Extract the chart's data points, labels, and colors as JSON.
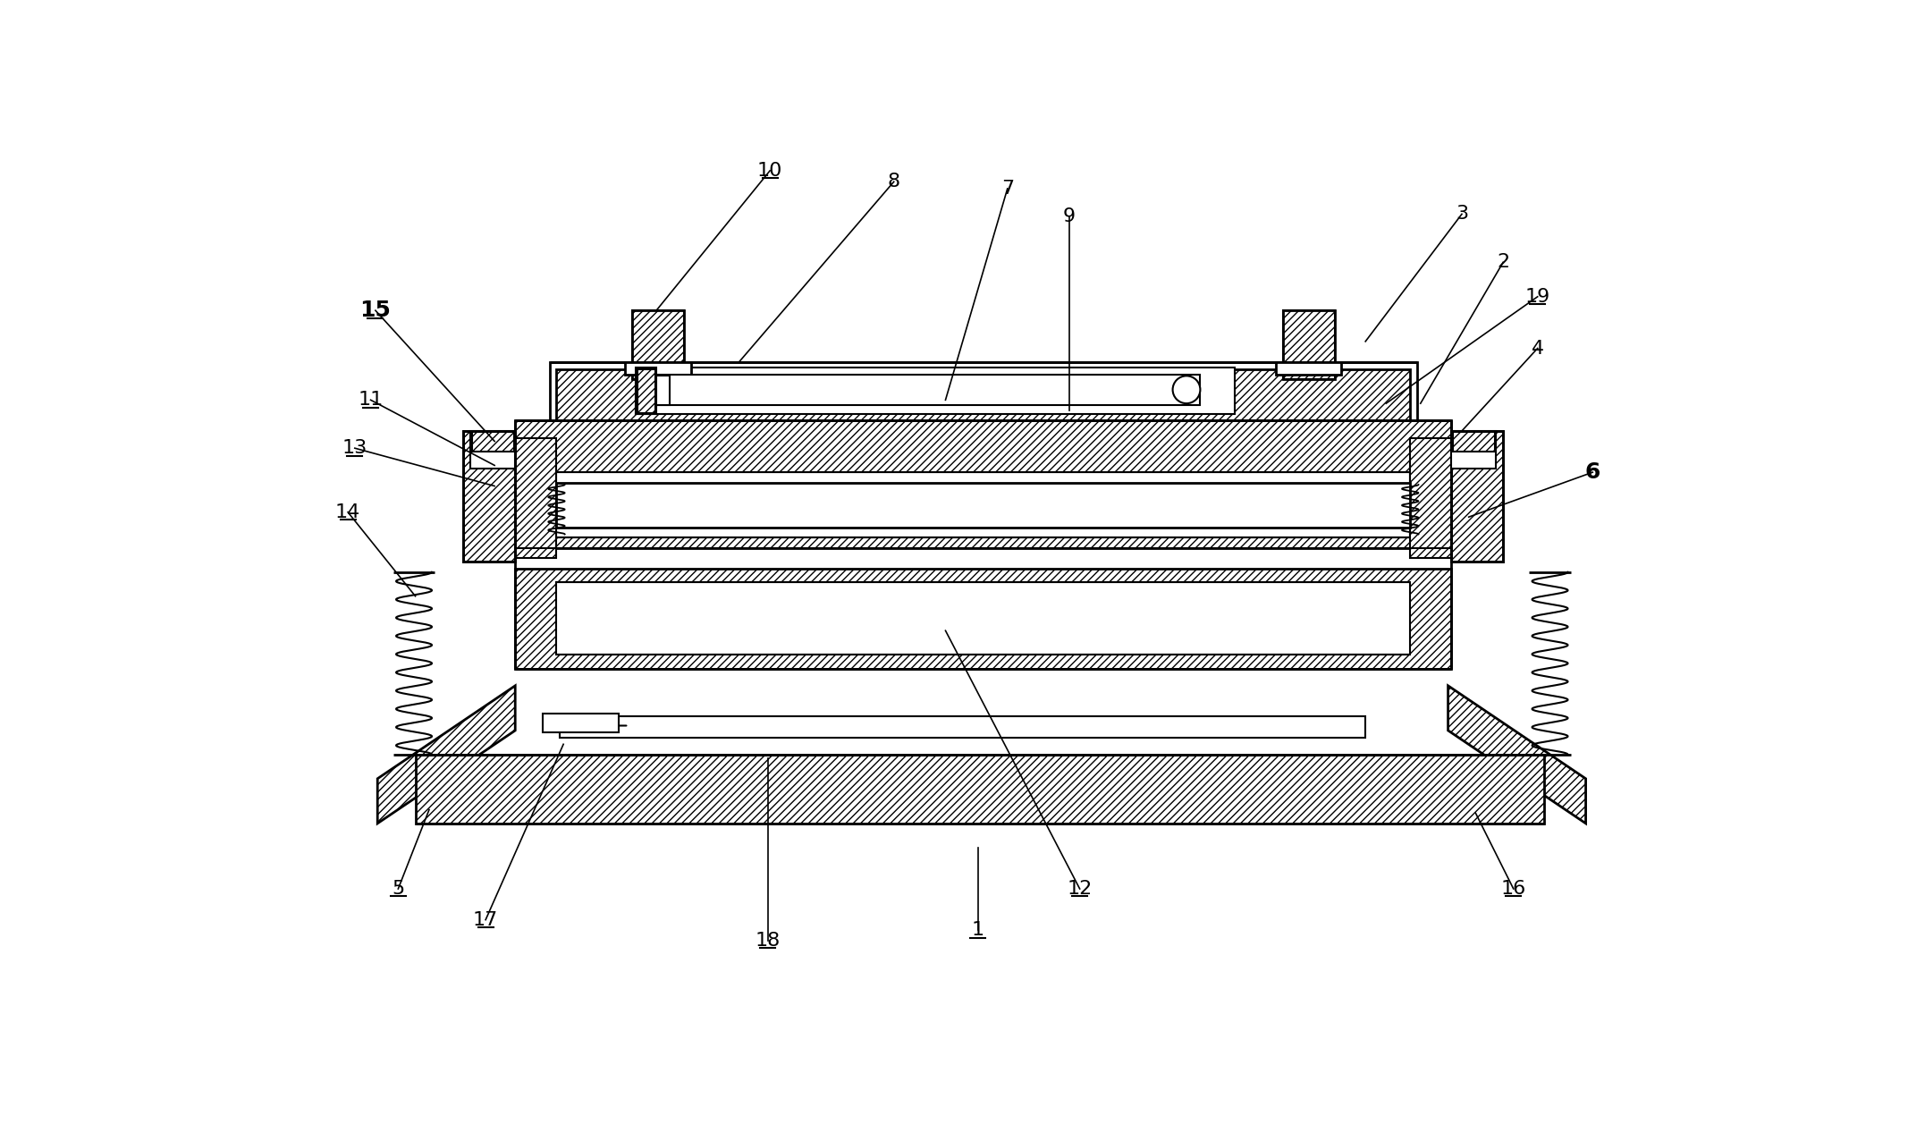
{
  "bg_color": "#ffffff",
  "fig_width": 21.34,
  "fig_height": 12.57,
  "labels_info": [
    [
      "1",
      1067,
      1155,
      1067,
      1035,
      false,
      true
    ],
    [
      "2",
      1830,
      185,
      1710,
      390,
      false,
      false
    ],
    [
      "3",
      1770,
      115,
      1630,
      300,
      false,
      false
    ],
    [
      "4",
      1880,
      310,
      1770,
      430,
      false,
      false
    ],
    [
      "5",
      225,
      1095,
      270,
      980,
      false,
      true
    ],
    [
      "6",
      1960,
      490,
      1780,
      555,
      true,
      false
    ],
    [
      "7",
      1110,
      78,
      1020,
      385,
      false,
      false
    ],
    [
      "8",
      945,
      68,
      720,
      330,
      false,
      false
    ],
    [
      "9",
      1200,
      118,
      1200,
      400,
      false,
      false
    ],
    [
      "10",
      765,
      52,
      600,
      255,
      false,
      true
    ],
    [
      "11",
      185,
      385,
      365,
      480,
      false,
      true
    ],
    [
      "12",
      1215,
      1095,
      1020,
      720,
      false,
      true
    ],
    [
      "13",
      162,
      455,
      365,
      510,
      false,
      true
    ],
    [
      "14",
      152,
      548,
      250,
      670,
      false,
      true
    ],
    [
      "15",
      192,
      255,
      365,
      445,
      true,
      true
    ],
    [
      "16",
      1845,
      1095,
      1790,
      985,
      false,
      true
    ],
    [
      "17",
      352,
      1140,
      465,
      885,
      false,
      true
    ],
    [
      "18",
      762,
      1170,
      762,
      905,
      false,
      true
    ],
    [
      "19",
      1880,
      235,
      1660,
      390,
      false,
      true
    ]
  ]
}
